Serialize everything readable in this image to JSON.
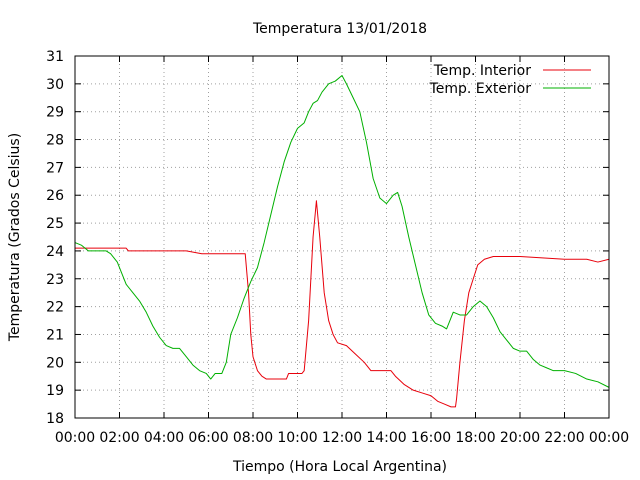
{
  "chart_data": {
    "type": "line",
    "title": "Temperatura 13/01/2018",
    "xlabel": "Tiempo (Hora Local Argentina)",
    "ylabel": "Temperatura (Grados Celsius)",
    "xlim": [
      0,
      24
    ],
    "ylim": [
      18,
      31
    ],
    "grid": true,
    "legend_position": "top-right",
    "x_tick_labels": [
      "00:00",
      "02:00",
      "04:00",
      "06:00",
      "08:00",
      "10:00",
      "12:00",
      "14:00",
      "16:00",
      "18:00",
      "20:00",
      "22:00",
      "00:00"
    ],
    "y_tick_labels": [
      "18",
      "19",
      "20",
      "21",
      "22",
      "23",
      "24",
      "25",
      "26",
      "27",
      "28",
      "29",
      "30",
      "31"
    ],
    "series": [
      {
        "name": "Temp. Interior",
        "color": "#e8000b",
        "points": [
          [
            0.0,
            24.1
          ],
          [
            2.3,
            24.1
          ],
          [
            2.4,
            24.0
          ],
          [
            4.0,
            24.0
          ],
          [
            5.0,
            24.0
          ],
          [
            5.7,
            23.9
          ],
          [
            7.6,
            23.9
          ],
          [
            7.65,
            23.9
          ],
          [
            7.8,
            22.5
          ],
          [
            7.9,
            21.0
          ],
          [
            8.0,
            20.2
          ],
          [
            8.2,
            19.7
          ],
          [
            8.4,
            19.5
          ],
          [
            8.6,
            19.4
          ],
          [
            9.0,
            19.4
          ],
          [
            9.5,
            19.4
          ],
          [
            9.6,
            19.6
          ],
          [
            10.2,
            19.6
          ],
          [
            10.3,
            19.7
          ],
          [
            10.5,
            21.5
          ],
          [
            10.7,
            24.5
          ],
          [
            10.85,
            25.8
          ],
          [
            11.0,
            24.5
          ],
          [
            11.2,
            22.5
          ],
          [
            11.4,
            21.5
          ],
          [
            11.6,
            21.0
          ],
          [
            11.8,
            20.7
          ],
          [
            12.2,
            20.6
          ],
          [
            12.6,
            20.3
          ],
          [
            13.0,
            20.0
          ],
          [
            13.3,
            19.7
          ],
          [
            14.2,
            19.7
          ],
          [
            14.4,
            19.5
          ],
          [
            14.8,
            19.2
          ],
          [
            15.2,
            19.0
          ],
          [
            15.6,
            18.9
          ],
          [
            16.0,
            18.8
          ],
          [
            16.3,
            18.6
          ],
          [
            16.6,
            18.5
          ],
          [
            16.9,
            18.4
          ],
          [
            17.1,
            18.4
          ],
          [
            17.15,
            18.7
          ],
          [
            17.3,
            20.0
          ],
          [
            17.5,
            21.5
          ],
          [
            17.7,
            22.5
          ],
          [
            17.9,
            23.0
          ],
          [
            18.1,
            23.5
          ],
          [
            18.4,
            23.7
          ],
          [
            18.8,
            23.8
          ],
          [
            19.5,
            23.8
          ],
          [
            20.0,
            23.8
          ],
          [
            21.0,
            23.75
          ],
          [
            22.0,
            23.7
          ],
          [
            23.0,
            23.7
          ],
          [
            23.5,
            23.6
          ],
          [
            24.0,
            23.7
          ]
        ]
      },
      {
        "name": "Temp. Exterior",
        "color": "#00b000",
        "points": [
          [
            0.0,
            24.3
          ],
          [
            0.3,
            24.2
          ],
          [
            0.6,
            24.0
          ],
          [
            1.0,
            24.0
          ],
          [
            1.4,
            24.0
          ],
          [
            1.6,
            23.9
          ],
          [
            1.9,
            23.6
          ],
          [
            2.1,
            23.2
          ],
          [
            2.3,
            22.8
          ],
          [
            2.6,
            22.5
          ],
          [
            2.9,
            22.2
          ],
          [
            3.2,
            21.8
          ],
          [
            3.5,
            21.3
          ],
          [
            3.8,
            20.9
          ],
          [
            4.1,
            20.6
          ],
          [
            4.4,
            20.5
          ],
          [
            4.7,
            20.5
          ],
          [
            5.0,
            20.2
          ],
          [
            5.3,
            19.9
          ],
          [
            5.6,
            19.7
          ],
          [
            5.9,
            19.6
          ],
          [
            6.1,
            19.4
          ],
          [
            6.3,
            19.6
          ],
          [
            6.6,
            19.6
          ],
          [
            6.8,
            20.0
          ],
          [
            7.0,
            21.0
          ],
          [
            7.3,
            21.6
          ],
          [
            7.6,
            22.3
          ],
          [
            7.9,
            22.9
          ],
          [
            8.2,
            23.4
          ],
          [
            8.5,
            24.3
          ],
          [
            8.8,
            25.3
          ],
          [
            9.1,
            26.3
          ],
          [
            9.4,
            27.2
          ],
          [
            9.7,
            27.9
          ],
          [
            10.0,
            28.4
          ],
          [
            10.3,
            28.6
          ],
          [
            10.5,
            29.0
          ],
          [
            10.7,
            29.3
          ],
          [
            10.9,
            29.4
          ],
          [
            11.1,
            29.7
          ],
          [
            11.4,
            30.0
          ],
          [
            11.7,
            30.1
          ],
          [
            12.0,
            30.3
          ],
          [
            12.2,
            30.0
          ],
          [
            12.5,
            29.5
          ],
          [
            12.8,
            29.0
          ],
          [
            13.1,
            27.9
          ],
          [
            13.4,
            26.6
          ],
          [
            13.7,
            25.9
          ],
          [
            14.0,
            25.7
          ],
          [
            14.3,
            26.0
          ],
          [
            14.5,
            26.1
          ],
          [
            14.7,
            25.6
          ],
          [
            15.0,
            24.5
          ],
          [
            15.3,
            23.5
          ],
          [
            15.6,
            22.5
          ],
          [
            15.9,
            21.7
          ],
          [
            16.2,
            21.4
          ],
          [
            16.5,
            21.3
          ],
          [
            16.7,
            21.2
          ],
          [
            17.0,
            21.8
          ],
          [
            17.3,
            21.7
          ],
          [
            17.6,
            21.7
          ],
          [
            17.9,
            22.0
          ],
          [
            18.2,
            22.2
          ],
          [
            18.5,
            22.0
          ],
          [
            18.8,
            21.6
          ],
          [
            19.1,
            21.1
          ],
          [
            19.4,
            20.8
          ],
          [
            19.7,
            20.5
          ],
          [
            20.0,
            20.4
          ],
          [
            20.3,
            20.4
          ],
          [
            20.6,
            20.1
          ],
          [
            20.9,
            19.9
          ],
          [
            21.2,
            19.8
          ],
          [
            21.5,
            19.7
          ],
          [
            22.0,
            19.7
          ],
          [
            22.5,
            19.6
          ],
          [
            23.0,
            19.4
          ],
          [
            23.5,
            19.3
          ],
          [
            24.0,
            19.1
          ]
        ]
      }
    ]
  }
}
